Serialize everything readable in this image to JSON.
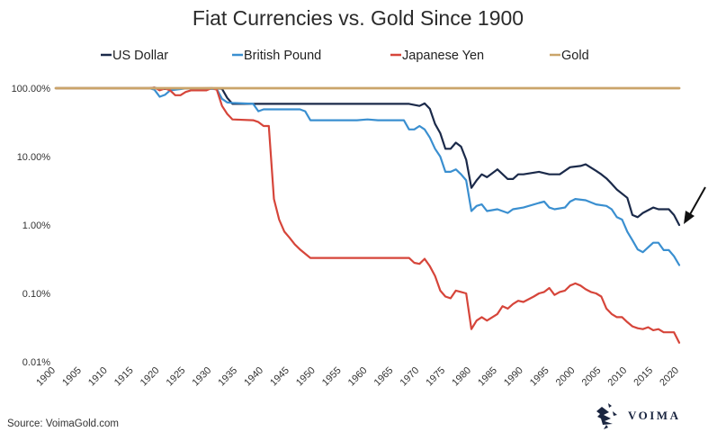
{
  "chart_data": {
    "type": "line",
    "title": "Fiat Currencies vs. Gold Since 1900",
    "y_scale": "log",
    "ylim": [
      0.0001,
      1.0
    ],
    "xlim": [
      1900,
      2020
    ],
    "y_ticks": [
      {
        "value": 1.0,
        "label": "100.00%"
      },
      {
        "value": 0.1,
        "label": "10.00%"
      },
      {
        "value": 0.01,
        "label": "1.00%"
      },
      {
        "value": 0.001,
        "label": "0.10%"
      },
      {
        "value": 0.0001,
        "label": "0.01%"
      }
    ],
    "x_ticks": [
      "1900",
      "1905",
      "1910",
      "1915",
      "1920",
      "1925",
      "1930",
      "1935",
      "1940",
      "1945",
      "1950",
      "1955",
      "1960",
      "1965",
      "1970",
      "1975",
      "1980",
      "1985",
      "1990",
      "1995",
      "2000",
      "2005",
      "2010",
      "2015",
      "2020"
    ],
    "legend_position": "top",
    "grid": false,
    "colors": {
      "usd": "#1b2a4a",
      "gbp": "#3a8fd0",
      "jpy": "#d6453a",
      "gold": "#caa46a"
    },
    "series": [
      {
        "name": "US Dollar",
        "color": "#1b2a4a",
        "points": [
          [
            1900,
            1.0
          ],
          [
            1918,
            1.0
          ],
          [
            1919,
            1.02
          ],
          [
            1920,
            0.97
          ],
          [
            1925,
            0.99
          ],
          [
            1930,
            1.0
          ],
          [
            1932,
            0.98
          ],
          [
            1933,
            0.72
          ],
          [
            1934,
            0.59
          ],
          [
            1945,
            0.59
          ],
          [
            1960,
            0.59
          ],
          [
            1968,
            0.59
          ],
          [
            1969,
            0.57
          ],
          [
            1970,
            0.55
          ],
          [
            1971,
            0.6
          ],
          [
            1972,
            0.5
          ],
          [
            1973,
            0.3
          ],
          [
            1974,
            0.22
          ],
          [
            1975,
            0.13
          ],
          [
            1976,
            0.13
          ],
          [
            1977,
            0.16
          ],
          [
            1978,
            0.14
          ],
          [
            1979,
            0.09
          ],
          [
            1980,
            0.035
          ],
          [
            1981,
            0.045
          ],
          [
            1982,
            0.055
          ],
          [
            1983,
            0.05
          ],
          [
            1985,
            0.065
          ],
          [
            1987,
            0.047
          ],
          [
            1988,
            0.047
          ],
          [
            1989,
            0.055
          ],
          [
            1990,
            0.055
          ],
          [
            1993,
            0.06
          ],
          [
            1995,
            0.055
          ],
          [
            1997,
            0.055
          ],
          [
            1999,
            0.07
          ],
          [
            2001,
            0.073
          ],
          [
            2002,
            0.077
          ],
          [
            2004,
            0.062
          ],
          [
            2005,
            0.055
          ],
          [
            2006,
            0.048
          ],
          [
            2007,
            0.04
          ],
          [
            2008,
            0.033
          ],
          [
            2010,
            0.025
          ],
          [
            2011,
            0.014
          ],
          [
            2012,
            0.013
          ],
          [
            2013,
            0.015
          ],
          [
            2015,
            0.018
          ],
          [
            2016,
            0.017
          ],
          [
            2018,
            0.017
          ],
          [
            2019,
            0.014
          ],
          [
            2020,
            0.01
          ]
        ]
      },
      {
        "name": "British Pound",
        "color": "#3a8fd0",
        "points": [
          [
            1900,
            1.0
          ],
          [
            1918,
            1.0
          ],
          [
            1919,
            0.95
          ],
          [
            1920,
            0.75
          ],
          [
            1921,
            0.8
          ],
          [
            1922,
            0.93
          ],
          [
            1925,
            0.99
          ],
          [
            1931,
            0.97
          ],
          [
            1932,
            0.7
          ],
          [
            1933,
            0.62
          ],
          [
            1934,
            0.61
          ],
          [
            1938,
            0.59
          ],
          [
            1939,
            0.46
          ],
          [
            1940,
            0.49
          ],
          [
            1947,
            0.49
          ],
          [
            1948,
            0.46
          ],
          [
            1949,
            0.34
          ],
          [
            1955,
            0.34
          ],
          [
            1958,
            0.34
          ],
          [
            1960,
            0.35
          ],
          [
            1962,
            0.34
          ],
          [
            1967,
            0.34
          ],
          [
            1968,
            0.25
          ],
          [
            1969,
            0.25
          ],
          [
            1970,
            0.28
          ],
          [
            1971,
            0.25
          ],
          [
            1972,
            0.19
          ],
          [
            1973,
            0.13
          ],
          [
            1974,
            0.1
          ],
          [
            1975,
            0.06
          ],
          [
            1976,
            0.06
          ],
          [
            1977,
            0.065
          ],
          [
            1978,
            0.055
          ],
          [
            1979,
            0.045
          ],
          [
            1980,
            0.016
          ],
          [
            1981,
            0.019
          ],
          [
            1982,
            0.02
          ],
          [
            1983,
            0.016
          ],
          [
            1985,
            0.017
          ],
          [
            1987,
            0.015
          ],
          [
            1988,
            0.017
          ],
          [
            1990,
            0.018
          ],
          [
            1993,
            0.021
          ],
          [
            1994,
            0.022
          ],
          [
            1995,
            0.018
          ],
          [
            1996,
            0.017
          ],
          [
            1998,
            0.018
          ],
          [
            1999,
            0.022
          ],
          [
            2000,
            0.024
          ],
          [
            2002,
            0.023
          ],
          [
            2004,
            0.02
          ],
          [
            2006,
            0.019
          ],
          [
            2007,
            0.017
          ],
          [
            2008,
            0.013
          ],
          [
            2009,
            0.012
          ],
          [
            2010,
            0.008
          ],
          [
            2011,
            0.006
          ],
          [
            2012,
            0.0044
          ],
          [
            2013,
            0.004
          ],
          [
            2015,
            0.0055
          ],
          [
            2016,
            0.0055
          ],
          [
            2017,
            0.0043
          ],
          [
            2018,
            0.0043
          ],
          [
            2019,
            0.0035
          ],
          [
            2020,
            0.0026
          ]
        ]
      },
      {
        "name": "Japanese Yen",
        "color": "#d6453a",
        "points": [
          [
            1900,
            1.0
          ],
          [
            1918,
            1.0
          ],
          [
            1919,
            1.02
          ],
          [
            1920,
            0.93
          ],
          [
            1921,
            0.99
          ],
          [
            1922,
            0.93
          ],
          [
            1923,
            0.79
          ],
          [
            1924,
            0.79
          ],
          [
            1925,
            0.88
          ],
          [
            1926,
            0.93
          ],
          [
            1929,
            0.93
          ],
          [
            1930,
            1.0
          ],
          [
            1931,
            0.95
          ],
          [
            1932,
            0.55
          ],
          [
            1933,
            0.42
          ],
          [
            1934,
            0.35
          ],
          [
            1938,
            0.34
          ],
          [
            1939,
            0.32
          ],
          [
            1940,
            0.28
          ],
          [
            1941,
            0.28
          ],
          [
            1942,
            0.024
          ],
          [
            1943,
            0.012
          ],
          [
            1944,
            0.008
          ],
          [
            1945,
            0.0065
          ],
          [
            1946,
            0.0052
          ],
          [
            1947,
            0.0044
          ],
          [
            1948,
            0.0038
          ],
          [
            1949,
            0.0033
          ],
          [
            1950,
            0.0033
          ],
          [
            1968,
            0.0033
          ],
          [
            1969,
            0.0028
          ],
          [
            1970,
            0.0027
          ],
          [
            1971,
            0.0032
          ],
          [
            1972,
            0.0025
          ],
          [
            1973,
            0.0018
          ],
          [
            1974,
            0.0011
          ],
          [
            1975,
            0.0009
          ],
          [
            1976,
            0.00085
          ],
          [
            1977,
            0.0011
          ],
          [
            1978,
            0.00105
          ],
          [
            1979,
            0.001
          ],
          [
            1980,
            0.0003
          ],
          [
            1981,
            0.0004
          ],
          [
            1982,
            0.00045
          ],
          [
            1983,
            0.0004
          ],
          [
            1985,
            0.0005
          ],
          [
            1986,
            0.00065
          ],
          [
            1987,
            0.0006
          ],
          [
            1988,
            0.0007
          ],
          [
            1989,
            0.00078
          ],
          [
            1990,
            0.00075
          ],
          [
            1992,
            0.0009
          ],
          [
            1993,
            0.001
          ],
          [
            1994,
            0.00105
          ],
          [
            1995,
            0.0012
          ],
          [
            1996,
            0.00095
          ],
          [
            1997,
            0.00105
          ],
          [
            1998,
            0.0011
          ],
          [
            1999,
            0.0013
          ],
          [
            2000,
            0.0014
          ],
          [
            2001,
            0.0013
          ],
          [
            2002,
            0.00115
          ],
          [
            2003,
            0.00105
          ],
          [
            2004,
            0.001
          ],
          [
            2005,
            0.0009
          ],
          [
            2006,
            0.0006
          ],
          [
            2007,
            0.0005
          ],
          [
            2008,
            0.00045
          ],
          [
            2009,
            0.00045
          ],
          [
            2010,
            0.00038
          ],
          [
            2011,
            0.00033
          ],
          [
            2012,
            0.00031
          ],
          [
            2013,
            0.0003
          ],
          [
            2014,
            0.00032
          ],
          [
            2015,
            0.00029
          ],
          [
            2016,
            0.0003
          ],
          [
            2017,
            0.00027
          ],
          [
            2019,
            0.00027
          ],
          [
            2020,
            0.00019
          ]
        ]
      },
      {
        "name": "Gold",
        "color": "#caa46a",
        "points": [
          [
            1900,
            1.0
          ],
          [
            2020,
            1.0
          ]
        ]
      }
    ]
  },
  "source": "Source: VoimaGold.com",
  "brand": {
    "name": "VOIMA",
    "logo_icon": "voima-logo-icon"
  }
}
